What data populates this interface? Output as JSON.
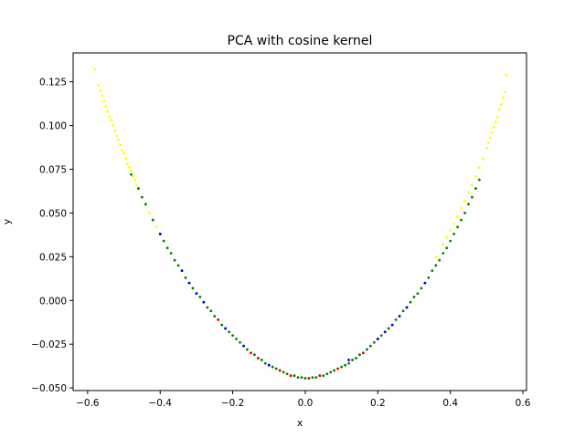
{
  "chart_data": {
    "type": "scatter",
    "title": "PCA with cosine kernel",
    "xlabel": "x",
    "ylabel": "y",
    "xlim": [
      -0.64,
      0.61
    ],
    "ylim": [
      -0.0515,
      0.1415
    ],
    "x_ticks": [
      -0.6,
      -0.4,
      -0.2,
      0.0,
      0.2,
      0.4,
      0.6
    ],
    "x_tick_labels": [
      "−0.6",
      "−0.4",
      "−0.2",
      "0.0",
      "0.2",
      "0.4",
      "0.6"
    ],
    "y_ticks": [
      -0.05,
      -0.025,
      0.0,
      0.025,
      0.05,
      0.075,
      0.1,
      0.125
    ],
    "y_tick_labels": [
      "−0.050",
      "−0.025",
      "0.000",
      "0.025",
      "0.050",
      "0.075",
      "0.100",
      "0.125"
    ],
    "grid": false,
    "legend": "none",
    "curve": {
      "vertex_x": -0.005,
      "vertex_y": -0.0445,
      "left_end": [
        -0.58,
        0.132
      ],
      "right_end": [
        0.555,
        0.129
      ]
    },
    "series": [
      {
        "color": "#ffff00",
        "x": [
          -0.58,
          -0.57,
          -0.565,
          -0.56,
          -0.555,
          -0.55,
          -0.545,
          -0.54,
          -0.535,
          -0.53,
          -0.525,
          -0.52,
          -0.515,
          -0.51,
          -0.505,
          -0.5,
          -0.495,
          -0.49,
          -0.485,
          -0.48,
          -0.475,
          -0.47,
          -0.465,
          -0.46,
          -0.45,
          -0.44,
          -0.43,
          -0.42,
          -0.41,
          -0.4,
          -0.39,
          -0.38,
          -0.36,
          0.36,
          0.38,
          0.39,
          0.4,
          0.41,
          0.42,
          0.43,
          0.44,
          0.45,
          0.46,
          0.47,
          0.48,
          0.49,
          0.5,
          0.505,
          0.51,
          0.515,
          0.52,
          0.525,
          0.53,
          0.535,
          0.54,
          0.545,
          0.55,
          0.555
        ],
        "y": [
          0.132,
          0.123,
          0.12,
          0.117,
          0.114,
          0.111,
          0.108,
          0.105,
          0.103,
          0.1,
          0.097,
          0.094,
          0.092,
          0.089,
          0.086,
          0.084,
          0.081,
          0.078,
          0.076,
          0.074,
          0.071,
          0.069,
          0.066,
          0.064,
          0.059,
          0.055,
          0.05,
          0.046,
          0.042,
          0.038,
          0.034,
          0.03,
          0.023,
          0.025,
          0.032,
          0.036,
          0.04,
          0.044,
          0.048,
          0.053,
          0.057,
          0.062,
          0.066,
          0.071,
          0.076,
          0.081,
          0.087,
          0.09,
          0.093,
          0.096,
          0.099,
          0.102,
          0.105,
          0.109,
          0.112,
          0.116,
          0.119,
          0.129
        ]
      },
      {
        "color": "#008000",
        "x": [
          -0.48,
          -0.46,
          -0.45,
          -0.44,
          -0.42,
          -0.4,
          -0.39,
          -0.38,
          -0.37,
          -0.36,
          -0.35,
          -0.34,
          -0.33,
          -0.32,
          -0.31,
          -0.3,
          -0.29,
          -0.28,
          -0.27,
          -0.26,
          -0.25,
          -0.24,
          -0.23,
          -0.22,
          -0.21,
          -0.2,
          -0.19,
          -0.18,
          -0.17,
          -0.16,
          -0.15,
          -0.14,
          -0.13,
          -0.12,
          -0.11,
          -0.1,
          -0.09,
          -0.08,
          -0.07,
          -0.06,
          -0.05,
          -0.04,
          -0.03,
          -0.02,
          -0.01,
          0.0,
          0.01,
          0.02,
          0.03,
          0.04,
          0.05,
          0.06,
          0.07,
          0.08,
          0.09,
          0.1,
          0.11,
          0.12,
          0.13,
          0.14,
          0.15,
          0.16,
          0.17,
          0.18,
          0.19,
          0.2,
          0.21,
          0.22,
          0.23,
          0.24,
          0.25,
          0.26,
          0.27,
          0.28,
          0.29,
          0.3,
          0.31,
          0.32,
          0.33,
          0.34,
          0.35,
          0.36,
          0.37,
          0.38,
          0.39,
          0.4,
          0.41,
          0.42,
          0.43,
          0.44,
          0.45,
          0.46,
          0.47,
          0.48
        ],
        "y": [
          0.072,
          0.064,
          0.059,
          0.055,
          0.046,
          0.038,
          0.034,
          0.03,
          0.027,
          0.023,
          0.02,
          0.017,
          0.013,
          0.01,
          0.007,
          0.004,
          0.002,
          -0.001,
          -0.004,
          -0.006,
          -0.009,
          -0.011,
          -0.014,
          -0.016,
          -0.018,
          -0.02,
          -0.022,
          -0.024,
          -0.026,
          -0.028,
          -0.03,
          -0.031,
          -0.033,
          -0.034,
          -0.036,
          -0.037,
          -0.038,
          -0.039,
          -0.04,
          -0.041,
          -0.042,
          -0.043,
          -0.043,
          -0.044,
          -0.044,
          -0.0445,
          -0.0445,
          -0.044,
          -0.044,
          -0.043,
          -0.043,
          -0.042,
          -0.041,
          -0.04,
          -0.039,
          -0.038,
          -0.037,
          -0.036,
          -0.034,
          -0.033,
          -0.031,
          -0.03,
          -0.028,
          -0.026,
          -0.024,
          -0.022,
          -0.02,
          -0.018,
          -0.016,
          -0.014,
          -0.011,
          -0.009,
          -0.006,
          -0.004,
          -0.001,
          0.002,
          0.004,
          0.007,
          0.01,
          0.013,
          0.017,
          0.02,
          0.023,
          0.027,
          0.03,
          0.034,
          0.038,
          0.042,
          0.046,
          0.05,
          0.055,
          0.059,
          0.064,
          0.069
        ]
      },
      {
        "color": "#0000ff",
        "x": [
          -0.4,
          -0.34,
          -0.32,
          -0.3,
          -0.28,
          -0.22,
          -0.17,
          -0.1,
          0.12,
          0.2,
          0.22,
          0.24,
          0.26,
          0.28,
          0.33
        ],
        "y": [
          0.038,
          0.017,
          0.01,
          0.004,
          -0.001,
          -0.016,
          -0.026,
          -0.037,
          -0.034,
          -0.022,
          -0.018,
          -0.014,
          -0.009,
          -0.004,
          0.01
        ]
      },
      {
        "color": "#ff0000",
        "x": [
          -0.24,
          -0.15,
          -0.13,
          -0.07,
          -0.04,
          0.01,
          0.04,
          0.09,
          0.16
        ],
        "y": [
          -0.011,
          -0.03,
          -0.033,
          -0.04,
          -0.043,
          -0.0445,
          -0.043,
          -0.039,
          -0.03
        ]
      }
    ]
  }
}
